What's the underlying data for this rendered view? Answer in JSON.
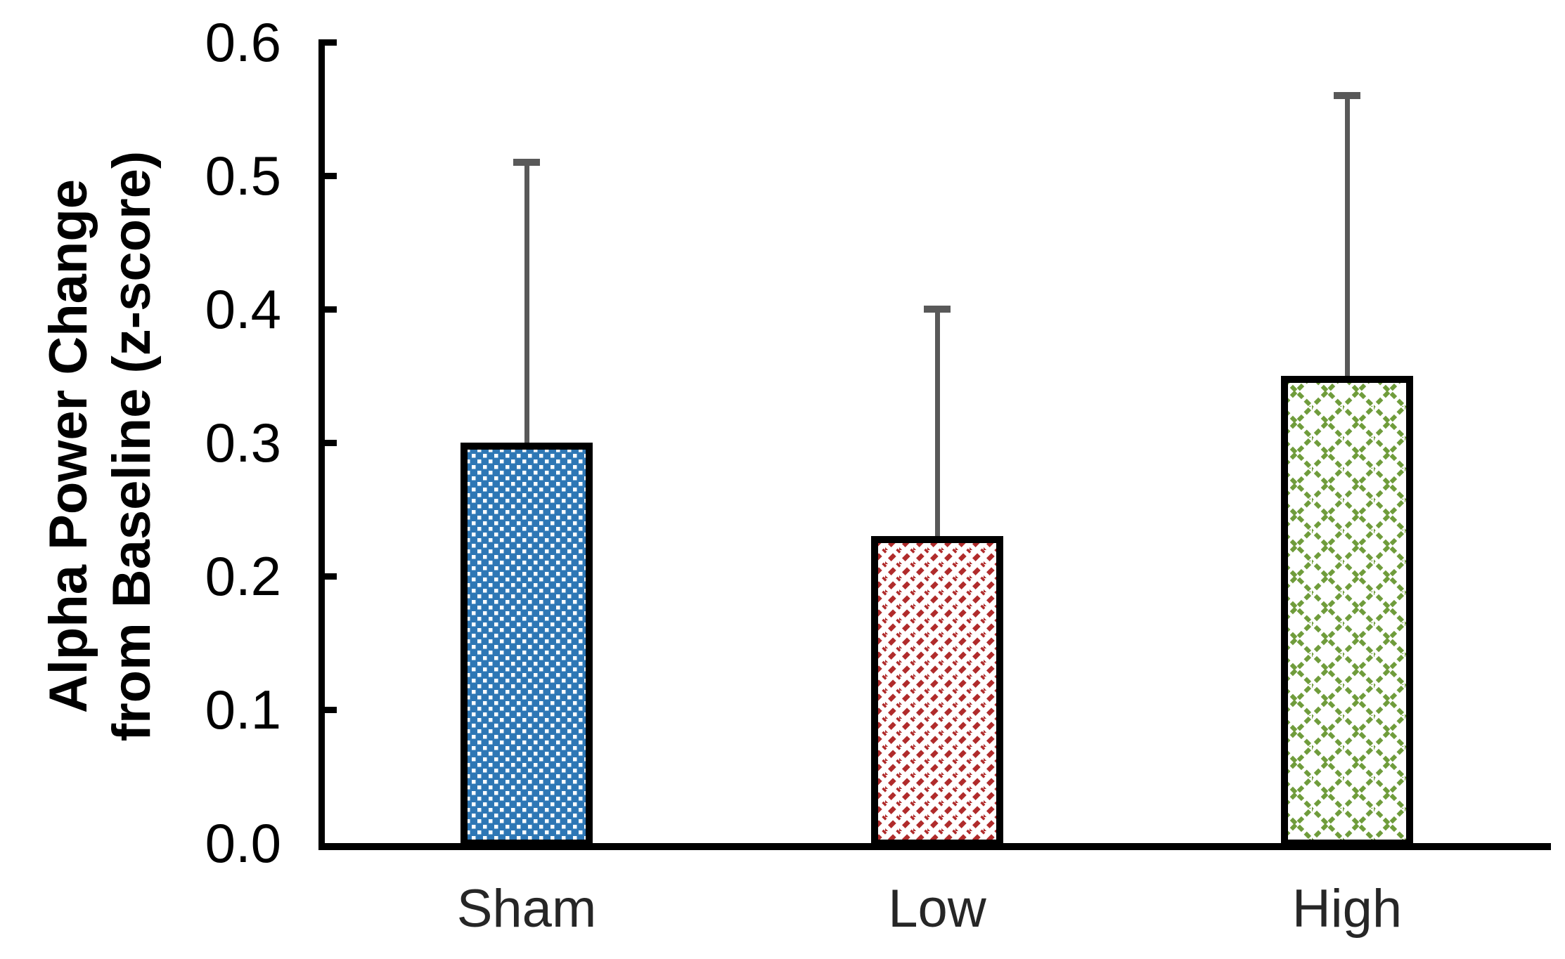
{
  "chart_data": {
    "type": "bar",
    "title": "",
    "categories": [
      "Sham",
      "Low",
      "High"
    ],
    "values": [
      0.3,
      0.23,
      0.35
    ],
    "errors_upper": [
      0.21,
      0.17,
      0.21
    ],
    "error_caps_at": [
      0.51,
      0.4,
      0.56
    ],
    "ylabel_line1": "Alpha Power Change",
    "ylabel_line2": "from Baseline (z-score)",
    "xlabel": "",
    "ylim": [
      0.0,
      0.6
    ],
    "ytick_labels": [
      "0.0",
      "0.1",
      "0.2",
      "0.3",
      "0.4",
      "0.5",
      "0.6"
    ],
    "grid": false,
    "legend": "none",
    "bar_styles": [
      {
        "category": "Sham",
        "pattern": "checker-weave",
        "color": "#2E77B5"
      },
      {
        "category": "Low",
        "pattern": "dashed-diagonal-up",
        "color": "#B02B2B"
      },
      {
        "category": "High",
        "pattern": "dashed-diagonal-crosshatch",
        "color": "#6F9C3B"
      }
    ],
    "error_bar_color": "#595959",
    "axis_color": "#000000",
    "background_color": "#ffffff"
  }
}
